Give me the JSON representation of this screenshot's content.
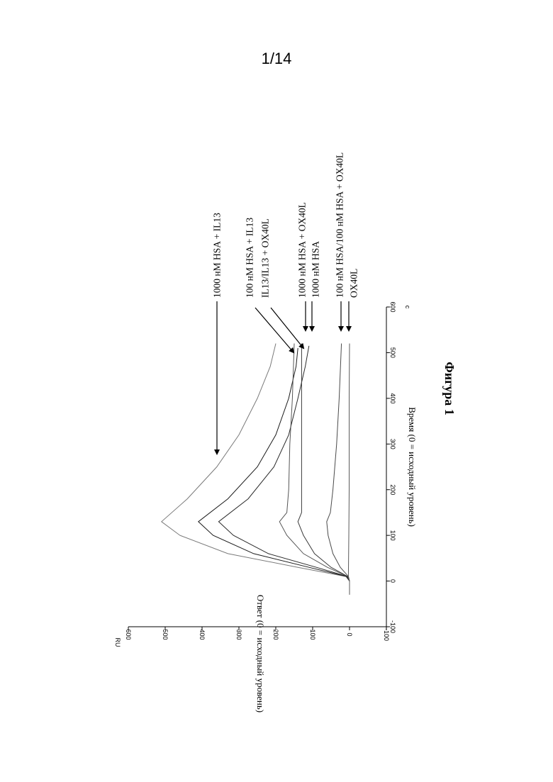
{
  "page": {
    "number": "1/14"
  },
  "figure": {
    "caption": "Фигура 1"
  },
  "chart_data": {
    "type": "line",
    "title": "",
    "xlabel": "Время (0 = исходный уровень)",
    "x_unit": "с",
    "ylabel": "Ответ (0 = исходный уровень)",
    "y_unit": "RU",
    "xlim": [
      -100,
      600
    ],
    "ylim": [
      -100,
      600
    ],
    "x_ticks": [
      -100,
      0,
      100,
      200,
      300,
      400,
      500,
      600
    ],
    "y_ticks": [
      -100,
      0,
      100,
      200,
      300,
      400,
      500,
      600
    ],
    "grid": false,
    "legend": "arrow labels to the right of the plot",
    "series": [
      {
        "name": "1000 нМ HSA + IL13",
        "x": [
          0,
          10,
          30,
          60,
          100,
          130,
          180,
          250,
          320,
          400,
          470,
          520
        ],
        "y": [
          0,
          10,
          140,
          330,
          460,
          510,
          440,
          360,
          300,
          250,
          215,
          200
        ]
      },
      {
        "name": "100 нМ HSA + IL13",
        "x": [
          0,
          10,
          30,
          60,
          100,
          130,
          180,
          250,
          320,
          400,
          470,
          510
        ],
        "y": [
          0,
          8,
          110,
          260,
          370,
          410,
          330,
          250,
          200,
          165,
          145,
          140
        ]
      },
      {
        "name": "IL13/IL13 + OX40L",
        "x": [
          0,
          10,
          30,
          60,
          100,
          130,
          180,
          250,
          320,
          400,
          470,
          515
        ],
        "y": [
          0,
          6,
          90,
          220,
          315,
          355,
          275,
          205,
          165,
          140,
          120,
          110
        ]
      },
      {
        "name": "1000 нМ HSA + OX40L",
        "x": [
          0,
          10,
          30,
          60,
          100,
          130,
          150,
          200,
          300,
          400,
          520
        ],
        "y": [
          0,
          5,
          60,
          125,
          170,
          190,
          170,
          165,
          162,
          155,
          150
        ]
      },
      {
        "name": "1000 нМ HSA",
        "x": [
          0,
          10,
          30,
          60,
          100,
          130,
          150,
          200,
          300,
          400,
          520
        ],
        "y": [
          0,
          5,
          50,
          95,
          125,
          140,
          130,
          130,
          130,
          130,
          130
        ]
      },
      {
        "name": "100 нМ HSA/100 нМ HSA + OX40L",
        "x": [
          0,
          10,
          30,
          60,
          100,
          130,
          150,
          200,
          300,
          400,
          520
        ],
        "y": [
          0,
          3,
          25,
          45,
          58,
          62,
          52,
          45,
          35,
          28,
          22
        ]
      },
      {
        "name": "OX40L",
        "x": [
          -30,
          0,
          10,
          100,
          200,
          300,
          400,
          520
        ],
        "y": [
          0,
          0,
          3,
          2,
          1,
          1,
          1,
          0
        ]
      }
    ]
  }
}
